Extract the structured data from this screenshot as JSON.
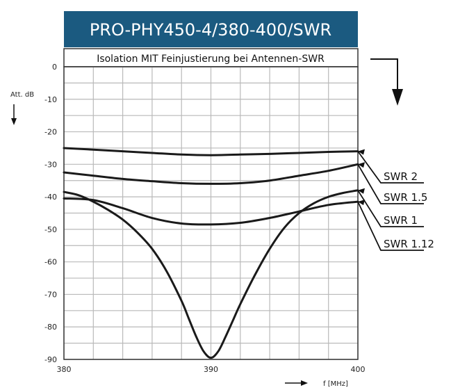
{
  "chart_data": {
    "type": "line",
    "title": "PRO-PHY450-4/380-400/SWR",
    "subtitle": "Isolation MIT Feinjustierung bei Antennen-SWR",
    "ylabel": "Att. dB",
    "xlabel": "f [MHz]",
    "xlim": [
      380,
      400
    ],
    "ylim": [
      -90,
      0
    ],
    "x_ticks": [
      "380",
      "390",
      "400"
    ],
    "y_ticks": [
      "0",
      "-10",
      "-20",
      "-30",
      "-40",
      "-50",
      "-60",
      "-70",
      "-80",
      "-90"
    ],
    "grid": true,
    "colors": {
      "header": "#1b5a80",
      "grid": "#b9b9b9",
      "line": "#1a1a1a",
      "frame": "#333333"
    },
    "series": [
      {
        "name": "SWR 2",
        "x": [
          380,
          382,
          384,
          386,
          388,
          390,
          392,
          394,
          396,
          398,
          400
        ],
        "y": [
          -25,
          -25.5,
          -26,
          -26.5,
          -27,
          -27.2,
          -27,
          -26.8,
          -26.5,
          -26.2,
          -26
        ]
      },
      {
        "name": "SWR 1.5",
        "x": [
          380,
          382,
          384,
          386,
          388,
          390,
          392,
          394,
          396,
          398,
          400
        ],
        "y": [
          -32.5,
          -33.5,
          -34.5,
          -35.2,
          -35.8,
          -36,
          -35.8,
          -35,
          -33.5,
          -32,
          -30
        ]
      },
      {
        "name": "SWR 1",
        "x": [
          380,
          381,
          382,
          383,
          384,
          385,
          386,
          387,
          388,
          388.5,
          389,
          389.5,
          390,
          390.5,
          391,
          391.5,
          392,
          393,
          394,
          395,
          396,
          397,
          398,
          399,
          400
        ],
        "y": [
          -38.5,
          -39.5,
          -41.5,
          -44,
          -47,
          -51,
          -56,
          -63,
          -72,
          -77.5,
          -83,
          -87.5,
          -89.5,
          -87.5,
          -83,
          -78,
          -73,
          -64,
          -56,
          -49.5,
          -45,
          -42,
          -40,
          -38.8,
          -38
        ]
      },
      {
        "name": "SWR 1.12",
        "x": [
          380,
          382,
          384,
          386,
          388,
          390,
          392,
          394,
          396,
          398,
          400
        ],
        "y": [
          -40.5,
          -41,
          -43.5,
          -46.5,
          -48.2,
          -48.5,
          -48,
          -46.5,
          -44.5,
          -42.5,
          -41.5
        ]
      }
    ]
  }
}
